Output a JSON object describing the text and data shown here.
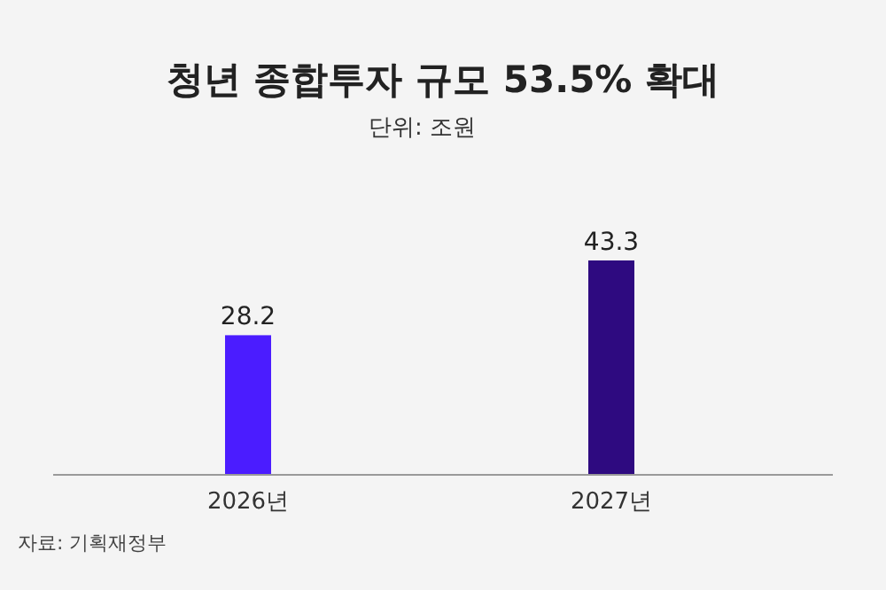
{
  "chart_data": {
    "type": "bar",
    "title": "청년 종합투자 규모 53.5% 확대",
    "subtitle": "단위: 조원",
    "categories": [
      "2026년",
      "2027년"
    ],
    "values": [
      28.2,
      43.3
    ],
    "colors": [
      "#4b1cff",
      "#2e0a80"
    ],
    "data_labels": true,
    "annotations": [
      "자료: 기획재정부"
    ]
  }
}
